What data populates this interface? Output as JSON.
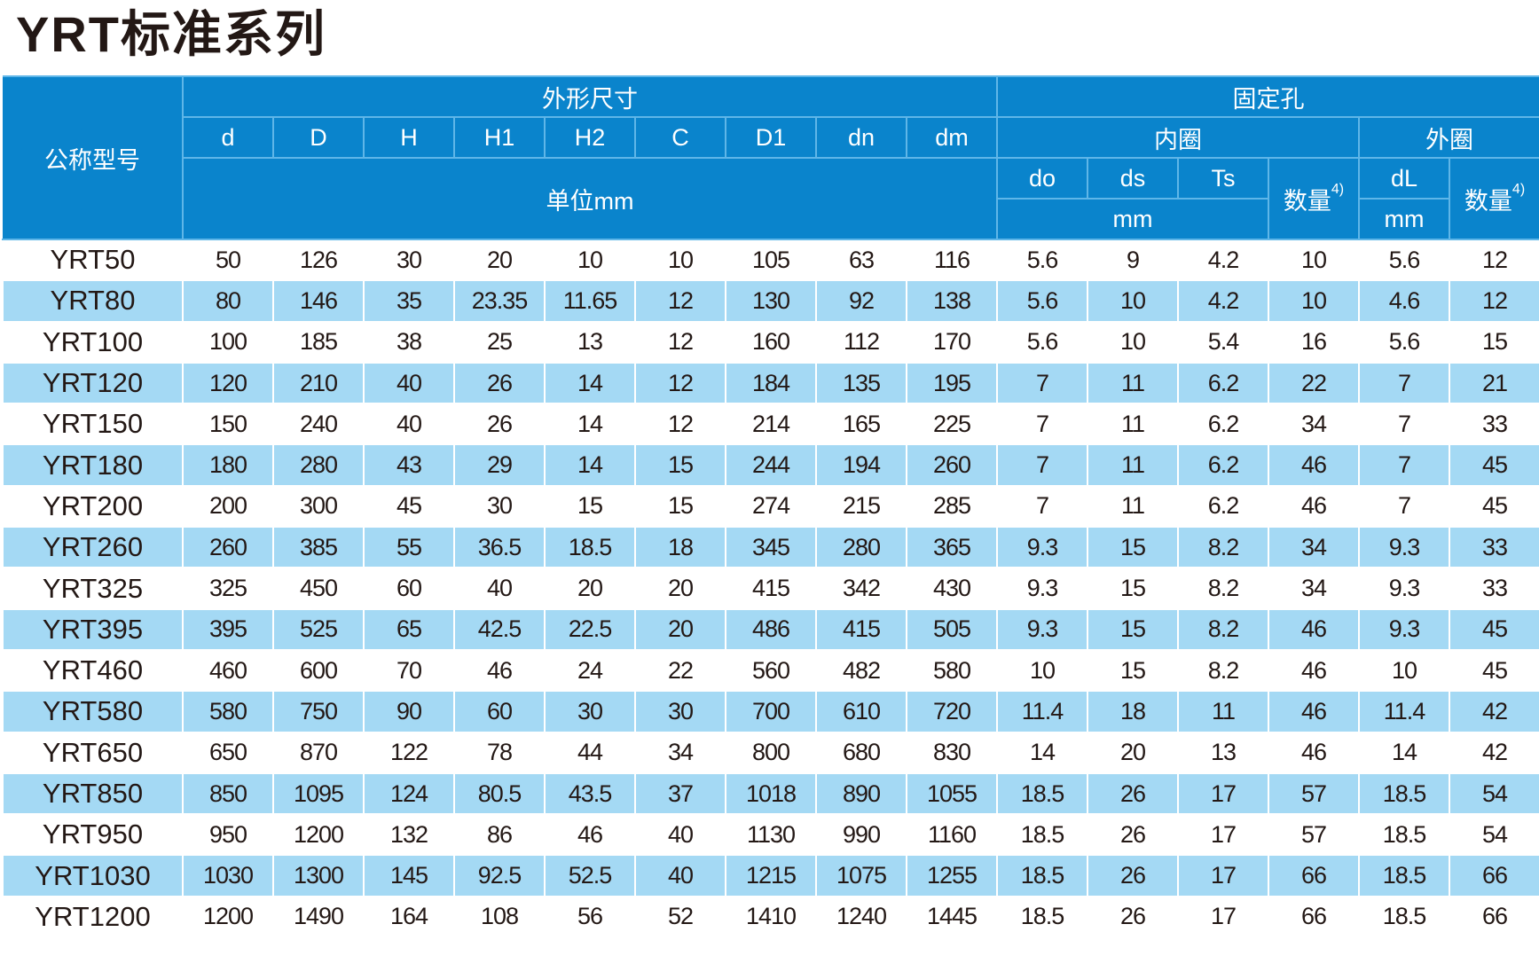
{
  "title": "YRT标准系列",
  "header": {
    "model": "公称型号",
    "outline": "外形尺寸",
    "fixing_holes": "固定孔",
    "outline_cols": [
      "d",
      "D",
      "H",
      "H1",
      "H2",
      "C",
      "D1",
      "dn",
      "dm"
    ],
    "inner_ring": "内圈",
    "outer_ring": "外圈",
    "unit_mm": "单位mm",
    "inner_cols": [
      "do",
      "ds",
      "Ts"
    ],
    "quantity": "数量",
    "footnote": "4)",
    "outer_col": "dL",
    "mm": "mm"
  },
  "rows": [
    [
      "YRT50",
      "50",
      "126",
      "30",
      "20",
      "10",
      "10",
      "105",
      "63",
      "116",
      "5.6",
      "9",
      "4.2",
      "10",
      "5.6",
      "12"
    ],
    [
      "YRT80",
      "80",
      "146",
      "35",
      "23.35",
      "11.65",
      "12",
      "130",
      "92",
      "138",
      "5.6",
      "10",
      "4.2",
      "10",
      "4.6",
      "12"
    ],
    [
      "YRT100",
      "100",
      "185",
      "38",
      "25",
      "13",
      "12",
      "160",
      "112",
      "170",
      "5.6",
      "10",
      "5.4",
      "16",
      "5.6",
      "15"
    ],
    [
      "YRT120",
      "120",
      "210",
      "40",
      "26",
      "14",
      "12",
      "184",
      "135",
      "195",
      "7",
      "11",
      "6.2",
      "22",
      "7",
      "21"
    ],
    [
      "YRT150",
      "150",
      "240",
      "40",
      "26",
      "14",
      "12",
      "214",
      "165",
      "225",
      "7",
      "11",
      "6.2",
      "34",
      "7",
      "33"
    ],
    [
      "YRT180",
      "180",
      "280",
      "43",
      "29",
      "14",
      "15",
      "244",
      "194",
      "260",
      "7",
      "11",
      "6.2",
      "46",
      "7",
      "45"
    ],
    [
      "YRT200",
      "200",
      "300",
      "45",
      "30",
      "15",
      "15",
      "274",
      "215",
      "285",
      "7",
      "11",
      "6.2",
      "46",
      "7",
      "45"
    ],
    [
      "YRT260",
      "260",
      "385",
      "55",
      "36.5",
      "18.5",
      "18",
      "345",
      "280",
      "365",
      "9.3",
      "15",
      "8.2",
      "34",
      "9.3",
      "33"
    ],
    [
      "YRT325",
      "325",
      "450",
      "60",
      "40",
      "20",
      "20",
      "415",
      "342",
      "430",
      "9.3",
      "15",
      "8.2",
      "34",
      "9.3",
      "33"
    ],
    [
      "YRT395",
      "395",
      "525",
      "65",
      "42.5",
      "22.5",
      "20",
      "486",
      "415",
      "505",
      "9.3",
      "15",
      "8.2",
      "46",
      "9.3",
      "45"
    ],
    [
      "YRT460",
      "460",
      "600",
      "70",
      "46",
      "24",
      "22",
      "560",
      "482",
      "580",
      "10",
      "15",
      "8.2",
      "46",
      "10",
      "45"
    ],
    [
      "YRT580",
      "580",
      "750",
      "90",
      "60",
      "30",
      "30",
      "700",
      "610",
      "720",
      "11.4",
      "18",
      "11",
      "46",
      "11.4",
      "42"
    ],
    [
      "YRT650",
      "650",
      "870",
      "122",
      "78",
      "44",
      "34",
      "800",
      "680",
      "830",
      "14",
      "20",
      "13",
      "46",
      "14",
      "42"
    ],
    [
      "YRT850",
      "850",
      "1095",
      "124",
      "80.5",
      "43.5",
      "37",
      "1018",
      "890",
      "1055",
      "18.5",
      "26",
      "17",
      "57",
      "18.5",
      "54"
    ],
    [
      "YRT950",
      "950",
      "1200",
      "132",
      "86",
      "46",
      "40",
      "1130",
      "990",
      "1160",
      "18.5",
      "26",
      "17",
      "57",
      "18.5",
      "54"
    ],
    [
      "YRT1030",
      "1030",
      "1300",
      "145",
      "92.5",
      "52.5",
      "40",
      "1215",
      "1075",
      "1255",
      "18.5",
      "26",
      "17",
      "66",
      "18.5",
      "66"
    ],
    [
      "YRT1200",
      "1200",
      "1490",
      "164",
      "108",
      "56",
      "52",
      "1410",
      "1240",
      "1445",
      "18.5",
      "26",
      "17",
      "66",
      "18.5",
      "66"
    ]
  ]
}
